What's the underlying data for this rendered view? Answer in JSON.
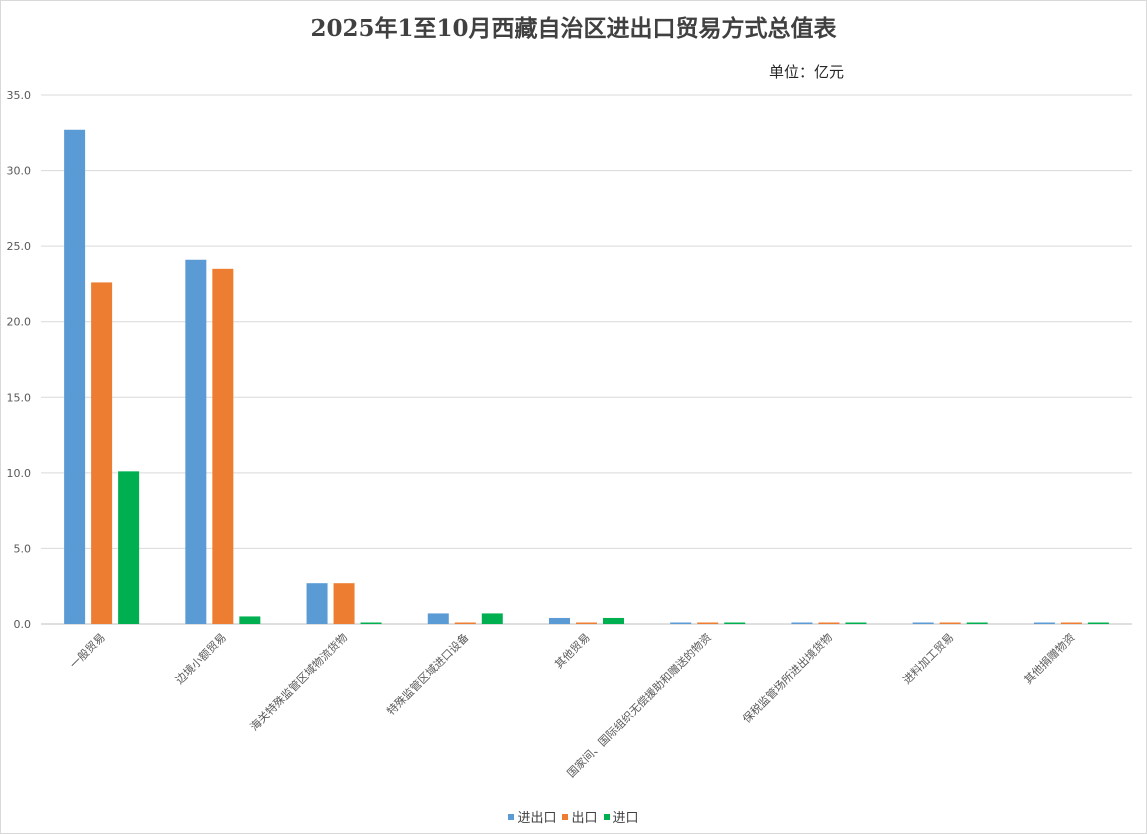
{
  "chart_data": {
    "type": "bar",
    "title": "2025年1至10月西藏自治区进出口贸易方式总值表",
    "unit_label": "单位：亿元",
    "categories": [
      "一般贸易",
      "边境小额贸易",
      "海关特殊监管区域物流货物",
      "特殊监管区域进口设备",
      "其他贸易",
      "国家间、国际组织无偿援助和赠送的物资",
      "保税监管场所进出境货物",
      "进料加工贸易",
      "其他捐赠物资"
    ],
    "series": [
      {
        "name": "进出口",
        "color": "#5B9BD5",
        "values": [
          32.7,
          24.1,
          2.7,
          0.7,
          0.4,
          0.0,
          0.0,
          0.0,
          0.0
        ]
      },
      {
        "name": "出口",
        "color": "#ED7D31",
        "values": [
          22.6,
          23.5,
          2.7,
          0.0,
          0.0,
          0.0,
          0.0,
          0.0,
          0.0
        ]
      },
      {
        "name": "进口",
        "color": "#00B050",
        "values": [
          10.1,
          0.5,
          0.0,
          0.7,
          0.4,
          0.0,
          0.0,
          0.0,
          0.0
        ]
      }
    ],
    "ylim": [
      0,
      35
    ],
    "yticks": [
      "0.0",
      "5.0",
      "10.0",
      "15.0",
      "20.0",
      "25.0",
      "30.0",
      "35.0"
    ],
    "grid": true,
    "legend_position": "bottom"
  }
}
